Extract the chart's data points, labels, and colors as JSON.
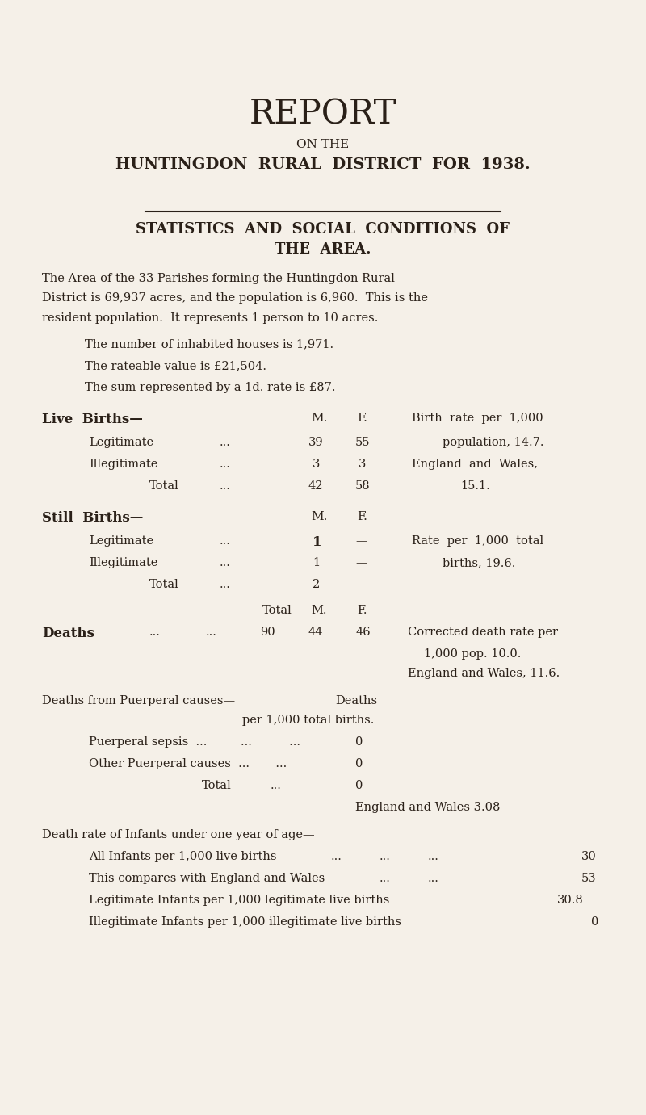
{
  "bg_color": "#f5f0e8",
  "text_color": "#2a2018",
  "fig_width": 8.0,
  "fig_height": 13.81,
  "dpi": 100
}
